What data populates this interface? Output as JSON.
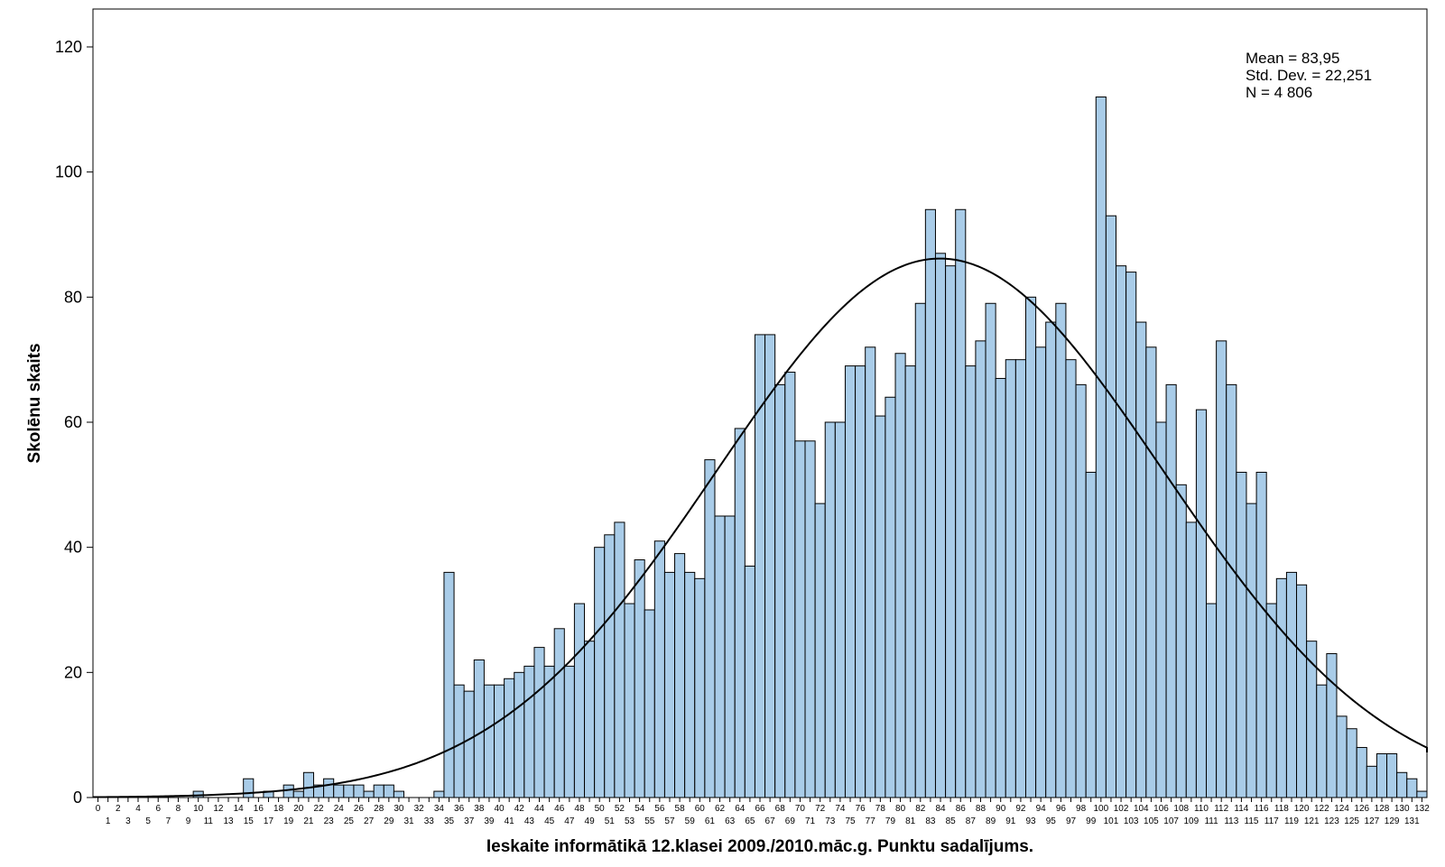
{
  "chart_data": {
    "type": "bar",
    "title": "",
    "xlabel": "Ieskaite informātikā 12.klasei 2009./2010.māc.g. Punktu sadalījums.",
    "ylabel": "Skolēnu skaits",
    "ylim": [
      0,
      120
    ],
    "yticks": [
      "0",
      "20",
      "40",
      "60",
      "80",
      "100",
      "120"
    ],
    "x_start": 0,
    "x_end": 133,
    "values": [
      0,
      0,
      0,
      0,
      0,
      0,
      0,
      0,
      0,
      0,
      1,
      0,
      0,
      0,
      0,
      3,
      0,
      1,
      0,
      2,
      1,
      4,
      2,
      3,
      2,
      2,
      2,
      1,
      2,
      2,
      1,
      0,
      0,
      0,
      1,
      36,
      18,
      17,
      22,
      18,
      18,
      19,
      20,
      21,
      24,
      21,
      27,
      21,
      31,
      25,
      40,
      42,
      44,
      31,
      38,
      30,
      41,
      36,
      39,
      36,
      35,
      54,
      45,
      45,
      59,
      37,
      74,
      74,
      66,
      68,
      57,
      57,
      47,
      60,
      60,
      69,
      69,
      72,
      61,
      64,
      71,
      69,
      79,
      94,
      87,
      85,
      94,
      69,
      73,
      79,
      67,
      70,
      70,
      80,
      72,
      76,
      79,
      70,
      66,
      52,
      112,
      93,
      85,
      84,
      76,
      72,
      60,
      66,
      50,
      44,
      62,
      31,
      73,
      66,
      52,
      47,
      52,
      31,
      35,
      36,
      34,
      25,
      18,
      23,
      13,
      11,
      8,
      5,
      7,
      7,
      4,
      3,
      1
    ],
    "bar_color": "#a9cce8",
    "bar_edge": "#000000",
    "curve": {
      "type": "normal",
      "mean": 83.95,
      "sd": 22.251,
      "n": 4806
    },
    "legend": "none",
    "grid": false,
    "stats": {
      "mean": "Mean = 83,95",
      "sd": "Std. Dev. = 22,251",
      "n": "N = 4 806"
    }
  }
}
